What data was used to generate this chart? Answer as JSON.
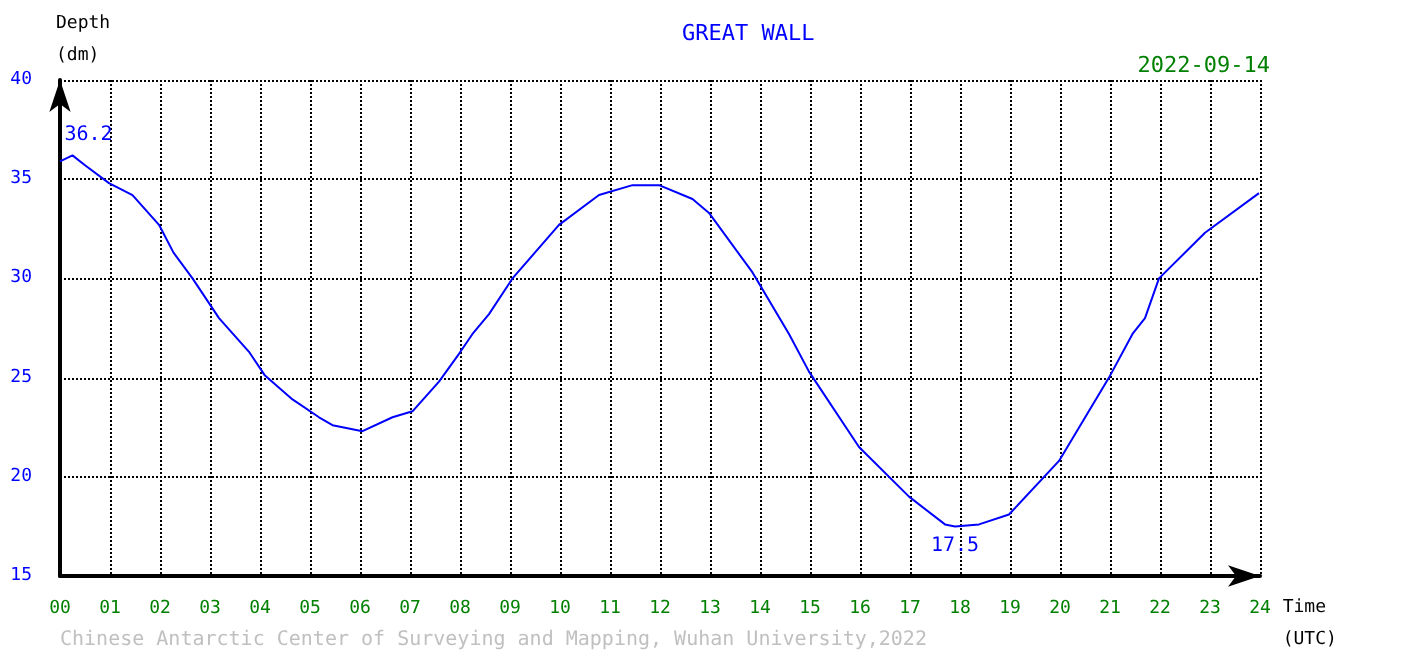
{
  "chart_data": {
    "type": "line",
    "title": "GREAT WALL",
    "subtitle": "2022-09-14",
    "xlabel": "Time (UTC)",
    "ylabel": "Depth (dm)",
    "x": [
      0,
      0.25,
      0.5,
      0.98,
      1.45,
      1.98,
      2.27,
      2.65,
      3.18,
      3.78,
      4.1,
      4.65,
      5.18,
      5.45,
      6.05,
      6.65,
      7.05,
      7.58,
      7.98,
      8.25,
      8.58,
      9.05,
      9.98,
      10.78,
      11.45,
      11.98,
      12.65,
      12.98,
      13.85,
      14.58,
      14.98,
      15.98,
      16.98,
      17.7,
      17.9,
      18.38,
      18.98,
      19.98,
      20.98,
      21.45,
      21.7,
      21.98,
      22.9,
      23.98
    ],
    "series": [
      {
        "color": "#0000ff",
        "values": [
          35.9,
          36.2,
          35.7,
          34.8,
          34.2,
          32.7,
          31.3,
          30.0,
          28.0,
          26.3,
          25.1,
          23.9,
          23.0,
          22.6,
          22.3,
          23.0,
          23.3,
          24.8,
          26.2,
          27.2,
          28.2,
          30.0,
          32.7,
          34.2,
          34.7,
          34.7,
          34.0,
          33.3,
          30.3,
          27.2,
          25.3,
          21.5,
          19.0,
          17.6,
          17.5,
          17.6,
          18.1,
          20.8,
          25.0,
          27.2,
          28.0,
          30.0,
          32.3,
          34.3
        ]
      }
    ],
    "xlim": [
      0,
      24
    ],
    "xticks": [
      {
        "value": 0,
        "label": "00"
      },
      {
        "value": 1,
        "label": "01"
      },
      {
        "value": 2,
        "label": "02"
      },
      {
        "value": 3,
        "label": "03"
      },
      {
        "value": 4,
        "label": "04"
      },
      {
        "value": 5,
        "label": "05"
      },
      {
        "value": 6,
        "label": "06"
      },
      {
        "value": 7,
        "label": "07"
      },
      {
        "value": 8,
        "label": "08"
      },
      {
        "value": 9,
        "label": "09"
      },
      10,
      11,
      12,
      13,
      14,
      15,
      16,
      17,
      18,
      19,
      20,
      21,
      22,
      23,
      24
    ],
    "ylim": [
      15,
      40
    ],
    "yticks": [
      15,
      20,
      25,
      30,
      35,
      40
    ],
    "grid": true,
    "marker": "none",
    "line_style": "solid",
    "annotations": [
      {
        "text": "36.2",
        "x": 0.25,
        "y": 36.2
      },
      {
        "text": "17.5",
        "x": 17.9,
        "y": 17.5
      },
      "Chinese Antarctic Center of Surveying and Mapping, Wuhan University,2022"
    ]
  }
}
